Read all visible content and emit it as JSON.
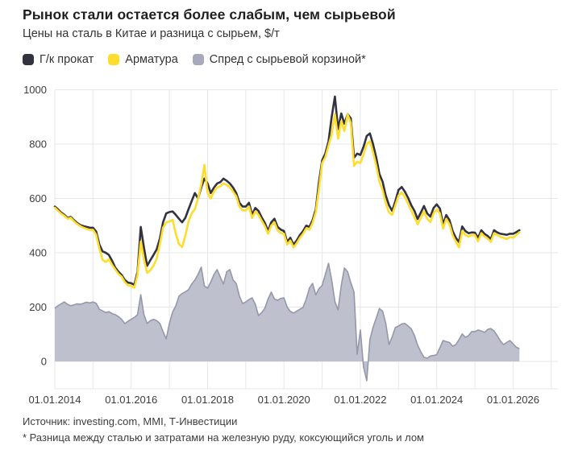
{
  "header": {
    "title": "Рынок стали остается более слабым, чем сырьевой",
    "subtitle": "Цены на сталь в Китае и разница с сырьем, $/т"
  },
  "footer": {
    "source": "Источник: investing.com, MMI, Т-Инвестиции",
    "footnote": "* Разница между сталью и затратами на железную руду, коксующийся уголь и лом"
  },
  "colors": {
    "grid": "#e7e7e7",
    "axis_text": "#3c3c3c",
    "background": "#ffffff"
  },
  "chart_data": {
    "type": "line",
    "title": "Рынок стали остается более слабым, чем сырьевой",
    "subtitle": "Цены на сталь в Китае и разница с сырьем, $/т",
    "x_unit": "date, monthly from 2014-01 to 2026-03",
    "x_start_year": 2014,
    "points_per_year": 12,
    "x_axis_years": [
      2014,
      2027.2
    ],
    "ylim": [
      -95,
      1050
    ],
    "grid": "on",
    "legend_position": "top",
    "y_ticks": [
      0,
      200,
      400,
      600,
      800,
      1000
    ],
    "x_ticks": [
      {
        "year": 2014,
        "label": "01.01.2014"
      },
      {
        "year": 2016,
        "label": "01.01.2016"
      },
      {
        "year": 2018,
        "label": "01.01.2018"
      },
      {
        "year": 2020,
        "label": "01.01.2020"
      },
      {
        "year": 2022,
        "label": "01.01.2022"
      },
      {
        "year": 2024,
        "label": "01.01.2024"
      },
      {
        "year": 2026,
        "label": "01.01.2026"
      }
    ],
    "series": [
      {
        "name": "Г/к прокат",
        "kind": "line",
        "color": "#32333f",
        "values": [
          570,
          560,
          548,
          540,
          528,
          532,
          520,
          510,
          502,
          498,
          495,
          492,
          492,
          478,
          430,
          405,
          400,
          392,
          370,
          345,
          330,
          318,
          300,
          290,
          288,
          282,
          330,
          495,
          420,
          352,
          372,
          392,
          412,
          452,
          512,
          545,
          550,
          552,
          540,
          525,
          512,
          528,
          560,
          590,
          620,
          600,
          640,
          673,
          655,
          620,
          640,
          655,
          660,
          673,
          665,
          655,
          640,
          620,
          584,
          570,
          570,
          584,
          540,
          565,
          554,
          530,
          510,
          480,
          512,
          525,
          495,
          485,
          480,
          440,
          455,
          430,
          445,
          465,
          480,
          500,
          495,
          520,
          560,
          660,
          740,
          765,
          810,
          900,
          975,
          855,
          913,
          875,
          910,
          895,
          750,
          765,
          760,
          790,
          830,
          839,
          800,
          750,
          690,
          661,
          610,
          575,
          554,
          590,
          631,
          642,
          625,
          602,
          575,
          554,
          524,
          548,
          572,
          545,
          533,
          565,
          578,
          563,
          504,
          539,
          520,
          480,
          455,
          439,
          497,
          480,
          472,
          475,
          474,
          455,
          483,
          470,
          462,
          450,
          483,
          475,
          470,
          468,
          466,
          470,
          470,
          476,
          483
        ]
      },
      {
        "name": "Арматура",
        "kind": "line",
        "color": "#ffdd2d",
        "values": [
          566,
          555,
          544,
          536,
          525,
          529,
          516,
          506,
          498,
          492,
          488,
          484,
          484,
          466,
          415,
          374,
          366,
          376,
          355,
          338,
          322,
          312,
          292,
          280,
          278,
          271,
          320,
          441,
          375,
          326,
          336,
          352,
          378,
          432,
          492,
          512,
          515,
          521,
          470,
          432,
          421,
          462,
          515,
          545,
          560,
          600,
          650,
          723,
          620,
          600,
          625,
          640,
          645,
          655,
          650,
          640,
          625,
          608,
          570,
          556,
          556,
          570,
          528,
          552,
          540,
          518,
          498,
          470,
          500,
          512,
          482,
          472,
          470,
          430,
          445,
          420,
          435,
          455,
          470,
          490,
          485,
          510,
          550,
          635,
          730,
          752,
          795,
          836,
          910,
          820,
          884,
          848,
          909,
          878,
          720,
          735,
          730,
          762,
          800,
          810,
          770,
          720,
          662,
          630,
          582,
          548,
          540,
          575,
          610,
          622,
          605,
          580,
          555,
          530,
          505,
          528,
          552,
          525,
          513,
          545,
          560,
          545,
          489,
          525,
          505,
          465,
          440,
          420,
          480,
          465,
          460,
          465,
          465,
          442,
          472,
          460,
          452,
          440,
          472,
          465,
          458,
          455,
          450,
          458,
          455,
          465,
          476
        ]
      },
      {
        "name": "Спред с сырьевой корзиной*",
        "kind": "area",
        "color": "#bfc0cd",
        "stroke": "#9597ab",
        "swatch_color": "#a8aabc",
        "values": [
          196,
          205,
          212,
          219,
          210,
          205,
          208,
          212,
          210,
          214,
          218,
          215,
          219,
          214,
          192,
          186,
          180,
          183,
          176,
          172,
          165,
          155,
          139,
          148,
          155,
          162,
          172,
          246,
          172,
          140,
          150,
          155,
          150,
          140,
          110,
          83,
          140,
          182,
          204,
          240,
          250,
          256,
          264,
          284,
          300,
          320,
          347,
          278,
          270,
          292,
          320,
          338,
          310,
          285,
          330,
          338,
          300,
          287,
          240,
          213,
          219,
          228,
          234,
          210,
          169,
          180,
          196,
          230,
          255,
          230,
          225,
          232,
          234,
          200,
          184,
          178,
          185,
          192,
          199,
          230,
          270,
          287,
          245,
          268,
          280,
          320,
          361,
          300,
          220,
          190,
          280,
          344,
          330,
          290,
          255,
          27,
          116,
          -20,
          -71,
          80,
          125,
          160,
          195,
          185,
          140,
          62,
          90,
          125,
          130,
          138,
          140,
          130,
          120,
          95,
          60,
          35,
          15,
          12,
          20,
          22,
          25,
          50,
          77,
          73,
          70,
          56,
          62,
          80,
          101,
          89,
          95,
          110,
          110,
          116,
          112,
          107,
          118,
          121,
          112,
          95,
          75,
          62,
          70,
          77,
          65,
          52,
          47
        ]
      }
    ]
  }
}
